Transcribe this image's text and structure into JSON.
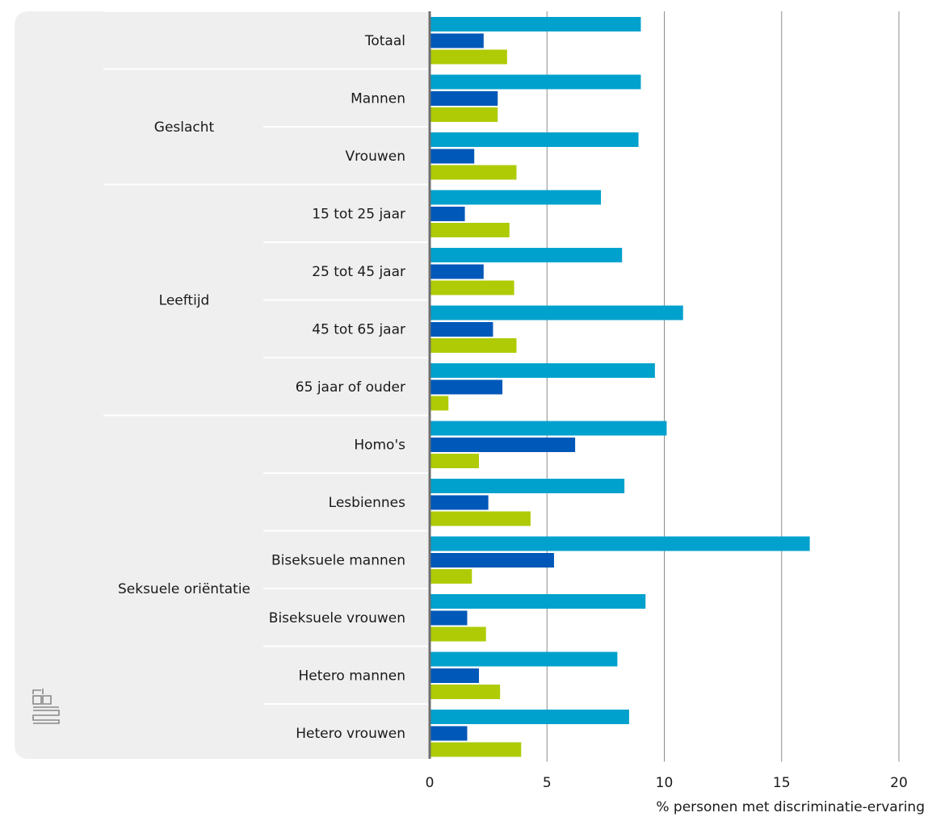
{
  "chart_data": {
    "type": "bar",
    "orientation": "horizontal",
    "xlabel": "% personen met discriminatie-ervaring",
    "xlim": [
      0,
      20
    ],
    "xticks": [
      0,
      5,
      10,
      15,
      20
    ],
    "grid": true,
    "legend": "none",
    "groups": [
      {
        "name": "",
        "start": 0,
        "end": 0
      },
      {
        "name": "Geslacht",
        "start": 1,
        "end": 2
      },
      {
        "name": "Leeftijd",
        "start": 3,
        "end": 6
      },
      {
        "name": "Seksuele oriëntatie",
        "start": 7,
        "end": 12
      }
    ],
    "categories": [
      "Totaal",
      "Mannen",
      "Vrouwen",
      "15 tot 25 jaar",
      "25 tot 45 jaar",
      "45 tot 65 jaar",
      "65 jaar of ouder",
      "Homo's",
      "Lesbiennes",
      "Biseksuele mannen",
      "Biseksuele vrouwen",
      "Hetero mannen",
      "Hetero vrouwen"
    ],
    "series": [
      {
        "color": "#00a1cd",
        "values": [
          9.0,
          9.0,
          8.9,
          7.3,
          8.2,
          10.8,
          9.6,
          10.1,
          8.3,
          16.2,
          9.2,
          8.0,
          8.5
        ]
      },
      {
        "color": "#0058b8",
        "values": [
          2.3,
          2.9,
          1.9,
          1.5,
          2.3,
          2.7,
          3.1,
          6.2,
          2.5,
          5.3,
          1.6,
          2.1,
          1.6
        ]
      },
      {
        "color": "#afcb05",
        "values": [
          3.3,
          2.9,
          3.7,
          3.4,
          3.6,
          3.7,
          0.8,
          2.1,
          4.3,
          1.8,
          2.4,
          3.0,
          3.9
        ]
      }
    ]
  },
  "logo": {
    "icon": "cbs-logo-icon",
    "text": "cbs"
  }
}
